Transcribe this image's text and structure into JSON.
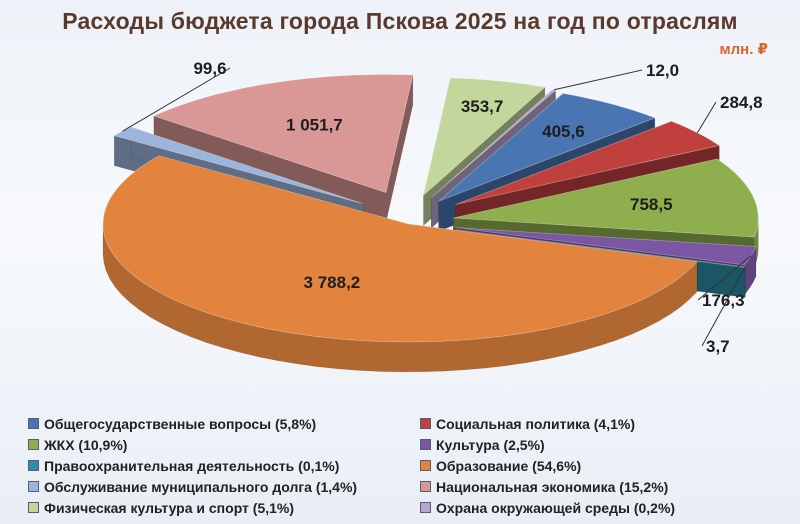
{
  "title": "Расходы бюджета города Пскова 2025 на год по отраслям",
  "unit": "млн. ₽",
  "chart_data": {
    "type": "pie",
    "title": "Расходы бюджета города Пскова 2025 на год по отраслям",
    "unit": "млн. ₽",
    "slices": [
      {
        "label": "Общегосударственные вопросы",
        "legend": "Общегосударственные вопросы (5,8%)",
        "value": 405.6,
        "value_label": "405,6",
        "color": "#4a75b3"
      },
      {
        "label": "Социальная политика",
        "legend": "Социальная политика (4,1%)",
        "value": 284.8,
        "value_label": "284,8",
        "color": "#c0403e"
      },
      {
        "label": "ЖКХ",
        "legend": "ЖКХ (10,9%)",
        "value": 758.5,
        "value_label": "758,5",
        "color": "#8faf4f"
      },
      {
        "label": "Культура",
        "legend": "Культура (2,5%)",
        "value": 176.3,
        "value_label": "176,3",
        "color": "#7a56a3"
      },
      {
        "label": "Правоохранительная деятельность",
        "legend": "Правоохранительная деятельность (0,1%)",
        "value": 3.7,
        "value_label": "3,7",
        "color": "#2b8fa6"
      },
      {
        "label": "Образование",
        "legend": "Образование (54,6%)",
        "value": 3788.2,
        "value_label": "3 788,2",
        "color": "#e2843e"
      },
      {
        "label": "Обслуживание муниципального долга",
        "legend": "Обслуживание муниципального долга (1,4%)",
        "value": 99.6,
        "value_label": "99,6",
        "color": "#9cb5dc"
      },
      {
        "label": "Национальная экономика",
        "legend": "Национальная экономика (15,2%)",
        "value": 1051.7,
        "value_label": "1 051,7",
        "color": "#d99795"
      },
      {
        "label": "Физическая культура и спорт",
        "legend": "Физическая культура и спорт (5,1%)",
        "value": 353.7,
        "value_label": "353,7",
        "color": "#c3d69b"
      },
      {
        "label": "Охрана окружающей среды",
        "legend": "Охрана окружающей среды (0,2%)",
        "value": 12.0,
        "value_label": "12,0",
        "color": "#b6a6cf"
      }
    ]
  }
}
